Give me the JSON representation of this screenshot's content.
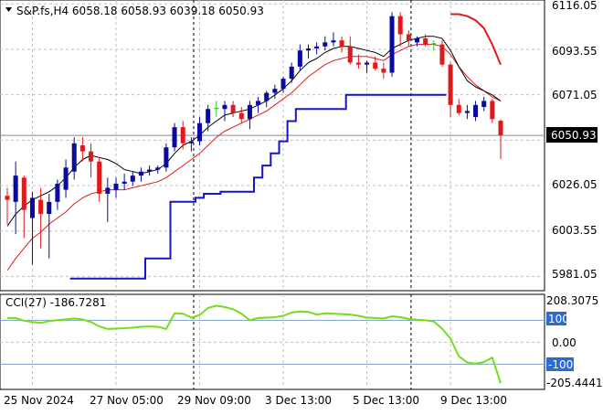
{
  "header": {
    "triangle": "chevron-down-icon",
    "title": "S&P.fs,H4  6058.18 6058.93 6039.18 6050.93"
  },
  "price_axis": {
    "labels": [
      "6116.05",
      "6093.55",
      "6071.05",
      "6048.55",
      "6026.05",
      "6003.55",
      "5981.05"
    ],
    "current_price_label": "6050.93"
  },
  "indicator": {
    "title": "CCI(27) -186.7281",
    "axis_labels": [
      "208.3075",
      "100",
      "0.00",
      "-100",
      "-205.4441"
    ],
    "level_badges": [
      "100",
      "-100"
    ]
  },
  "time_axis": {
    "labels": [
      "25 Nov 2024",
      "27 Nov 05:00",
      "29 Nov 09:00",
      "3 Dec 13:00",
      "5 Dec 13:00",
      "9 Dec 13:00"
    ]
  },
  "colors": {
    "bull": "#0a0aa0",
    "bear": "#e01a1a",
    "doji": "#2ecc2e",
    "ma_fast": "#000000",
    "ma_slow": "#e01a1a",
    "stop": "#1414c8",
    "cci": "#77dd1a",
    "badge": "#2b6cd4",
    "grid": "#c0c0c0",
    "session": "#000000"
  },
  "chart_data": {
    "type": "candlestick",
    "x": [
      "25 Nov 2024",
      "27 Nov 05:00",
      "29 Nov 09:00",
      "3 Dec 13:00",
      "5 Dec 13:00",
      "9 Dec 13:00"
    ],
    "ylim": [
      5974,
      6118
    ],
    "candles": [
      {
        "o": 6021,
        "h": 6025,
        "l": 6007,
        "c": 6019
      },
      {
        "o": 6018,
        "h": 6038,
        "l": 6002,
        "c": 6031
      },
      {
        "o": 6030,
        "h": 6031,
        "l": 6000,
        "c": 6014
      },
      {
        "o": 6010,
        "h": 6023,
        "l": 5987,
        "c": 6020
      },
      {
        "o": 6019,
        "h": 6025,
        "l": 5995,
        "c": 6012
      },
      {
        "o": 6012,
        "h": 6022,
        "l": 5990,
        "c": 6018
      },
      {
        "o": 6018,
        "h": 6029,
        "l": 6014,
        "c": 6027
      },
      {
        "o": 6024,
        "h": 6039,
        "l": 6020,
        "c": 6035
      },
      {
        "o": 6033,
        "h": 6050,
        "l": 6029,
        "c": 6047
      },
      {
        "o": 6046,
        "h": 6050,
        "l": 6038,
        "c": 6043
      },
      {
        "o": 6043,
        "h": 6047,
        "l": 6030,
        "c": 6038
      },
      {
        "o": 6038,
        "h": 6040,
        "l": 6018,
        "c": 6022
      },
      {
        "o": 6022,
        "h": 6030,
        "l": 6008,
        "c": 6025
      },
      {
        "o": 6024,
        "h": 6030,
        "l": 6020,
        "c": 6027
      },
      {
        "o": 6027,
        "h": 6032,
        "l": 6024,
        "c": 6028
      },
      {
        "o": 6028,
        "h": 6033,
        "l": 6026,
        "c": 6031
      },
      {
        "o": 6031,
        "h": 6035,
        "l": 6028,
        "c": 6033
      },
      {
        "o": 6033,
        "h": 6036,
        "l": 6031,
        "c": 6034
      },
      {
        "o": 6034,
        "h": 6036,
        "l": 6032,
        "c": 6035
      },
      {
        "o": 6035,
        "h": 6047,
        "l": 6033,
        "c": 6045
      },
      {
        "o": 6045,
        "h": 6057,
        "l": 6043,
        "c": 6055
      },
      {
        "o": 6055,
        "h": 6058,
        "l": 6044,
        "c": 6047
      },
      {
        "o": 6047,
        "h": 6050,
        "l": 6043,
        "c": 6048
      },
      {
        "o": 6048,
        "h": 6060,
        "l": 6046,
        "c": 6057
      },
      {
        "o": 6057,
        "h": 6066,
        "l": 6053,
        "c": 6064
      },
      {
        "o": 6064,
        "h": 6068,
        "l": 6060,
        "c": 6064.6
      },
      {
        "o": 6064,
        "h": 6068,
        "l": 6058,
        "c": 6066
      },
      {
        "o": 6066,
        "h": 6068,
        "l": 6060,
        "c": 6062
      },
      {
        "o": 6062,
        "h": 6065,
        "l": 6057,
        "c": 6059
      },
      {
        "o": 6059,
        "h": 6068,
        "l": 6054,
        "c": 6066
      },
      {
        "o": 6066,
        "h": 6070,
        "l": 6062,
        "c": 6068
      },
      {
        "o": 6068,
        "h": 6073,
        "l": 6065,
        "c": 6072
      },
      {
        "o": 6072,
        "h": 6076,
        "l": 6069,
        "c": 6074
      },
      {
        "o": 6074,
        "h": 6080,
        "l": 6072,
        "c": 6079
      },
      {
        "o": 6079,
        "h": 6087,
        "l": 6077,
        "c": 6085
      },
      {
        "o": 6085,
        "h": 6096,
        "l": 6083,
        "c": 6093
      },
      {
        "o": 6093,
        "h": 6096,
        "l": 6089,
        "c": 6094
      },
      {
        "o": 6094,
        "h": 6097,
        "l": 6091,
        "c": 6095
      },
      {
        "o": 6095,
        "h": 6100,
        "l": 6093,
        "c": 6097
      },
      {
        "o": 6097,
        "h": 6102,
        "l": 6095,
        "c": 6098
      },
      {
        "o": 6098,
        "h": 6100,
        "l": 6092,
        "c": 6095
      },
      {
        "o": 6095,
        "h": 6100,
        "l": 6086,
        "c": 6087
      },
      {
        "o": 6087,
        "h": 6091,
        "l": 6084,
        "c": 6086
      },
      {
        "o": 6086,
        "h": 6088,
        "l": 6082,
        "c": 6087
      },
      {
        "o": 6087,
        "h": 6090,
        "l": 6083,
        "c": 6084
      },
      {
        "o": 6084,
        "h": 6087,
        "l": 6079,
        "c": 6082
      },
      {
        "o": 6082,
        "h": 6112,
        "l": 6080,
        "c": 6110
      },
      {
        "o": 6110,
        "h": 6112,
        "l": 6095,
        "c": 6101
      },
      {
        "o": 6101,
        "h": 6103,
        "l": 6095,
        "c": 6098
      },
      {
        "o": 6097,
        "h": 6100,
        "l": 6095,
        "c": 6099
      },
      {
        "o": 6099,
        "h": 6101,
        "l": 6095,
        "c": 6096
      },
      {
        "o": 6096,
        "h": 6098,
        "l": 6093,
        "c": 6096.6
      },
      {
        "o": 6096,
        "h": 6098,
        "l": 6085,
        "c": 6086
      },
      {
        "o": 6086,
        "h": 6087,
        "l": 6060,
        "c": 6066
      },
      {
        "o": 6066,
        "h": 6069,
        "l": 6061,
        "c": 6062
      },
      {
        "o": 6062,
        "h": 6066,
        "l": 6059,
        "c": 6063
      },
      {
        "o": 6060,
        "h": 6068,
        "l": 6058,
        "c": 6066
      },
      {
        "o": 6065,
        "h": 6070,
        "l": 6063,
        "c": 6068
      },
      {
        "o": 6068,
        "h": 6069,
        "l": 6057,
        "c": 6059
      },
      {
        "o": 6058.18,
        "h": 6058.93,
        "l": 6039.18,
        "c": 6050.93
      }
    ],
    "ma_fast": [
      6006,
      6012,
      6016,
      6019,
      6021,
      6023,
      6026,
      6030,
      6035,
      6039,
      6041,
      6040,
      6039,
      6037,
      6034,
      6033,
      6032,
      6033,
      6034,
      6037,
      6042,
      6046,
      6048,
      6051,
      6055,
      6058,
      6061,
      6062,
      6063,
      6064,
      6066,
      6068,
      6071,
      6074,
      6078,
      6083,
      6087,
      6089,
      6092,
      6094,
      6095,
      6095,
      6094,
      6093,
      6092,
      6090,
      6094,
      6096,
      6098,
      6099,
      6100,
      6100,
      6099,
      6093,
      6085,
      6078,
      6075,
      6073,
      6071,
      6068
    ],
    "ma_slow": [
      5984,
      5990,
      5995,
      6000,
      6003,
      6007,
      6010,
      6013,
      6017,
      6020,
      6022,
      6023,
      6024,
      6024,
      6024,
      6025,
      6026,
      6027,
      6028,
      6030,
      6033,
      6036,
      6039,
      6042,
      6046,
      6050,
      6053,
      6055,
      6057,
      6059,
      6061,
      6063,
      6066,
      6069,
      6072,
      6076,
      6080,
      6083,
      6086,
      6088,
      6089,
      6090,
      6090,
      6090,
      6089,
      6088,
      6091,
      6093,
      6095,
      6096,
      6096,
      6096,
      6095,
      6091,
      6085,
      6080,
      6076,
      6073,
      6070,
      6068
    ],
    "stop_line": [
      null,
      null,
      null,
      null,
      null,
      null,
      null,
      null,
      5980,
      5980,
      5980,
      5980,
      5980,
      5980,
      5980,
      5980,
      5980,
      5990,
      5990,
      5990,
      6018,
      6018,
      6018,
      6020,
      6022,
      6022,
      6023,
      6023,
      6023,
      6023,
      6030,
      6036,
      6042,
      6048,
      6058,
      6064,
      6064,
      6064,
      6064,
      6064,
      6064,
      6071,
      6071,
      6071,
      6071,
      6071,
      6071,
      6071,
      6071,
      6071,
      6071,
      6071,
      6071,
      null,
      null,
      null,
      null,
      null,
      null,
      null
    ],
    "stop_line_upper": [
      null,
      null,
      null,
      null,
      null,
      null,
      null,
      null,
      null,
      null,
      null,
      null,
      null,
      null,
      null,
      null,
      null,
      null,
      null,
      null,
      null,
      null,
      null,
      null,
      null,
      null,
      null,
      null,
      null,
      null,
      null,
      null,
      null,
      null,
      null,
      null,
      null,
      null,
      null,
      null,
      null,
      null,
      null,
      null,
      null,
      null,
      null,
      null,
      null,
      null,
      null,
      null,
      null,
      6111,
      6111,
      6110,
      6108,
      6104,
      6096,
      6086
    ],
    "cci": [
      110,
      110,
      98,
      92,
      88,
      96,
      100,
      104,
      108,
      104,
      92,
      72,
      60,
      62,
      64,
      66,
      70,
      72,
      70,
      60,
      132,
      130,
      112,
      124,
      156,
      166,
      160,
      150,
      130,
      100,
      110,
      112,
      114,
      120,
      135,
      140,
      138,
      126,
      132,
      130,
      128,
      126,
      120,
      112,
      110,
      108,
      118,
      114,
      106,
      102,
      100,
      94,
      62,
      16,
      -64,
      -92,
      -98,
      -90,
      -70,
      -186.7281
    ]
  }
}
